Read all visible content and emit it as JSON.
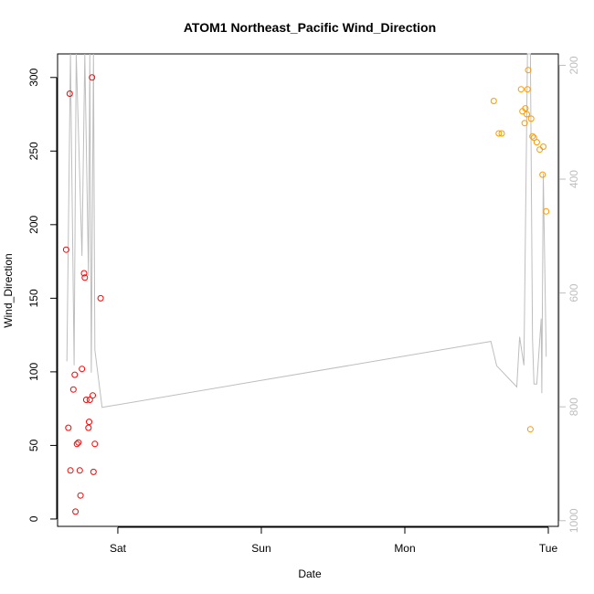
{
  "chart_data": {
    "type": "scatter",
    "title": "ATOM1 Northeast_Pacific Wind_Direction",
    "xlabel": "Date",
    "ylabel": "Wind_Direction",
    "x_ticks": [
      "Sat",
      "Sun",
      "Mon",
      "Tue"
    ],
    "y_ticks": [
      "0",
      "50",
      "100",
      "150",
      "200",
      "250",
      "300"
    ],
    "y2_ticks": [
      "200",
      "400",
      "600",
      "800",
      "1000"
    ],
    "x_unit": "days since Saturday 00:00",
    "xlim": [
      -0.42,
      3.07
    ],
    "ylim": [
      -5,
      316
    ],
    "y2lim": [
      1010,
      180
    ],
    "grid": false,
    "legend": "none",
    "colors": {
      "series_1": "#ff0000",
      "series_2": "#ff9900",
      "secondary_line": "#bebebe",
      "axis": "#000000"
    },
    "series": [
      {
        "type": "scatter",
        "color": "#ff0000",
        "points": [
          {
            "x": -0.36,
            "y": 183
          },
          {
            "x": -0.345,
            "y": 62
          },
          {
            "x": -0.335,
            "y": 289
          },
          {
            "x": -0.33,
            "y": 33
          },
          {
            "x": -0.31,
            "y": 88
          },
          {
            "x": -0.3,
            "y": 98
          },
          {
            "x": -0.295,
            "y": 5
          },
          {
            "x": -0.285,
            "y": 51
          },
          {
            "x": -0.275,
            "y": 52
          },
          {
            "x": -0.265,
            "y": 33
          },
          {
            "x": -0.26,
            "y": 16
          },
          {
            "x": -0.25,
            "y": 102
          },
          {
            "x": -0.235,
            "y": 167
          },
          {
            "x": -0.23,
            "y": 164
          },
          {
            "x": -0.22,
            "y": 81
          },
          {
            "x": -0.205,
            "y": 62
          },
          {
            "x": -0.2,
            "y": 66
          },
          {
            "x": -0.195,
            "y": 81
          },
          {
            "x": -0.18,
            "y": 300
          },
          {
            "x": -0.175,
            "y": 84
          },
          {
            "x": -0.17,
            "y": 32
          },
          {
            "x": -0.16,
            "y": 51
          },
          {
            "x": -0.12,
            "y": 150
          }
        ]
      },
      {
        "type": "scatter",
        "color": "#ff9900",
        "points": [
          {
            "x": 2.62,
            "y": 284
          },
          {
            "x": 2.655,
            "y": 262
          },
          {
            "x": 2.675,
            "y": 262
          },
          {
            "x": 2.81,
            "y": 292
          },
          {
            "x": 2.82,
            "y": 277
          },
          {
            "x": 2.835,
            "y": 269
          },
          {
            "x": 2.84,
            "y": 279
          },
          {
            "x": 2.85,
            "y": 275
          },
          {
            "x": 2.855,
            "y": 292
          },
          {
            "x": 2.86,
            "y": 305
          },
          {
            "x": 2.875,
            "y": 61
          },
          {
            "x": 2.88,
            "y": 272
          },
          {
            "x": 2.89,
            "y": 260
          },
          {
            "x": 2.9,
            "y": 259
          },
          {
            "x": 2.92,
            "y": 256
          },
          {
            "x": 2.94,
            "y": 251
          },
          {
            "x": 2.96,
            "y": 234
          },
          {
            "x": 2.965,
            "y": 253
          },
          {
            "x": 2.985,
            "y": 209
          }
        ]
      },
      {
        "type": "line",
        "axis": "right",
        "color": "#bebebe",
        "points": [
          {
            "x": -0.355,
            "y": 720
          },
          {
            "x": -0.33,
            "y": 180
          },
          {
            "x": -0.305,
            "y": 727
          },
          {
            "x": -0.29,
            "y": 180
          },
          {
            "x": -0.25,
            "y": 535
          },
          {
            "x": -0.23,
            "y": 180
          },
          {
            "x": -0.205,
            "y": 570
          },
          {
            "x": -0.195,
            "y": 180
          },
          {
            "x": -0.185,
            "y": 740
          },
          {
            "x": -0.17,
            "y": 180
          },
          {
            "x": -0.16,
            "y": 700
          },
          {
            "x": -0.11,
            "y": 801
          },
          {
            "x": 2.6,
            "y": 685
          },
          {
            "x": 2.64,
            "y": 728
          },
          {
            "x": 2.78,
            "y": 765
          },
          {
            "x": 2.8,
            "y": 677
          },
          {
            "x": 2.83,
            "y": 727
          },
          {
            "x": 2.855,
            "y": 180
          },
          {
            "x": 2.875,
            "y": 180
          },
          {
            "x": 2.89,
            "y": 680
          },
          {
            "x": 2.9,
            "y": 760
          },
          {
            "x": 2.92,
            "y": 760
          },
          {
            "x": 2.95,
            "y": 645
          },
          {
            "x": 2.955,
            "y": 776
          },
          {
            "x": 2.965,
            "y": 390
          },
          {
            "x": 2.985,
            "y": 712
          }
        ]
      }
    ]
  }
}
